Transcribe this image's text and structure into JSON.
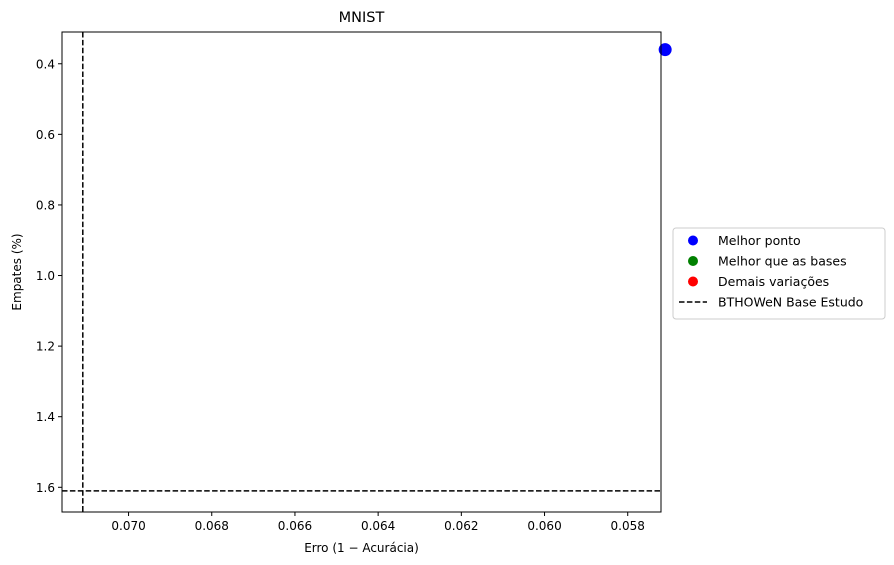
{
  "chart_data": {
    "type": "scatter",
    "title": "MNIST",
    "xlabel": "Erro (1 − Acurácia)",
    "ylabel": "Empates (%)",
    "x_inverted": true,
    "y_inverted": true,
    "xlim": [
      0.0716,
      0.0572
    ],
    "ylim": [
      0.31,
      1.67
    ],
    "xticks": [
      0.07,
      0.068,
      0.066,
      0.064,
      0.062,
      0.06,
      0.058
    ],
    "xtick_labels": [
      "0.070",
      "0.068",
      "0.066",
      "0.064",
      "0.062",
      "0.060",
      "0.058"
    ],
    "yticks": [
      0.4,
      0.6,
      0.8,
      1.0,
      1.2,
      1.4,
      1.6
    ],
    "ytick_labels": [
      "0.4",
      "0.6",
      "0.8",
      "1.0",
      "1.2",
      "1.4",
      "1.6"
    ],
    "grid": false,
    "legend_position": "outside right, center",
    "series": [
      {
        "name": "Melhor ponto",
        "color": "#0000ff",
        "points": [
          {
            "x": 0.0571,
            "y": 0.36
          }
        ]
      },
      {
        "name": "Melhor que as bases",
        "color": "#008000",
        "points": []
      },
      {
        "name": "Demais variações",
        "color": "#ff0000",
        "points": []
      }
    ],
    "reference_lines": [
      {
        "name": "BTHOWeN Base Estudo",
        "color": "#000000",
        "style": "dashed",
        "x": 0.0711,
        "y": 1.61
      }
    ],
    "legend": [
      {
        "label": "Melhor ponto",
        "kind": "marker",
        "color": "#0000ff"
      },
      {
        "label": "Melhor que as bases",
        "kind": "marker",
        "color": "#008000"
      },
      {
        "label": "Demais variações",
        "kind": "marker",
        "color": "#ff0000"
      },
      {
        "label": "BTHOWeN Base Estudo",
        "kind": "dashed-line",
        "color": "#000000"
      }
    ]
  }
}
